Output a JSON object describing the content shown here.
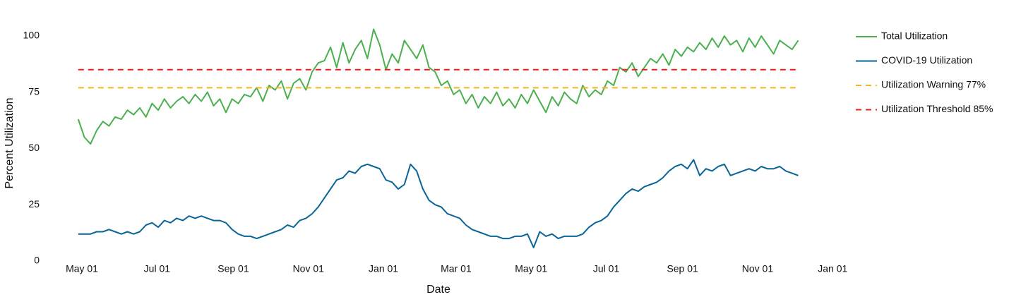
{
  "chart_data": {
    "type": "line",
    "x_label": "Date",
    "y_label": "Percent Utilization",
    "x": [
      -3,
      2,
      7,
      12,
      17,
      22,
      27,
      32,
      37,
      42,
      47,
      52,
      57,
      62,
      67,
      72,
      77,
      82,
      87,
      92,
      97,
      102,
      107,
      112,
      117,
      122,
      127,
      132,
      137,
      142,
      147,
      152,
      157,
      162,
      167,
      172,
      177,
      182,
      187,
      192,
      197,
      202,
      207,
      212,
      217,
      222,
      227,
      232,
      237,
      242,
      247,
      252,
      257,
      262,
      267,
      272,
      277,
      282,
      287,
      292,
      297,
      302,
      307,
      312,
      317,
      322,
      327,
      332,
      337,
      342,
      347,
      352,
      357,
      362,
      367,
      372,
      377,
      382,
      387,
      392,
      397,
      402,
      407,
      412,
      417,
      422,
      427,
      432,
      437,
      442,
      447,
      452,
      457,
      462,
      467,
      472,
      477,
      482,
      487,
      492,
      497,
      502,
      507,
      512,
      517,
      522,
      527,
      532,
      537,
      542,
      547,
      552,
      557,
      562,
      567,
      572,
      577,
      582
    ],
    "xlim": [
      -10,
      615
    ],
    "xticks": [
      {
        "value": 0,
        "label": "May 01"
      },
      {
        "value": 61,
        "label": "Jul 01"
      },
      {
        "value": 123,
        "label": "Sep 01"
      },
      {
        "value": 184,
        "label": "Nov 01"
      },
      {
        "value": 245,
        "label": "Jan 01"
      },
      {
        "value": 304,
        "label": "Mar 01"
      },
      {
        "value": 365,
        "label": "May 01"
      },
      {
        "value": 426,
        "label": "Jul 01"
      },
      {
        "value": 488,
        "label": "Sep 01"
      },
      {
        "value": 549,
        "label": "Nov 01"
      },
      {
        "value": 610,
        "label": "Jan 01"
      }
    ],
    "ylim": [
      0,
      105
    ],
    "yticks": [
      0,
      25,
      50,
      75,
      100
    ],
    "grid": false,
    "legend": "right",
    "series": [
      {
        "name": "Total Utilization",
        "color": "#4caf50",
        "values": [
          63,
          55,
          52,
          58,
          62,
          60,
          64,
          63,
          67,
          65,
          68,
          64,
          70,
          67,
          72,
          68,
          71,
          73,
          70,
          74,
          71,
          75,
          69,
          72,
          66,
          72,
          70,
          74,
          73,
          77,
          71,
          78,
          76,
          80,
          72,
          79,
          81,
          76,
          84,
          88,
          89,
          95,
          86,
          97,
          88,
          94,
          98,
          90,
          103,
          96,
          85,
          92,
          88,
          98,
          94,
          90,
          96,
          86,
          84,
          78,
          80,
          74,
          76,
          70,
          74,
          68,
          73,
          70,
          75,
          69,
          72,
          68,
          74,
          70,
          76,
          71,
          66,
          73,
          69,
          75,
          72,
          70,
          78,
          73,
          76,
          74,
          80,
          78,
          86,
          84,
          88,
          82,
          86,
          90,
          88,
          92,
          87,
          94,
          91,
          95,
          93,
          97,
          94,
          99,
          95,
          100,
          96,
          98,
          93,
          99,
          95,
          100,
          96,
          92,
          98,
          96,
          94,
          98
        ]
      },
      {
        "name": "COVID-19 Utilization",
        "color": "#0a6496",
        "values": [
          12,
          12,
          12,
          13,
          13,
          14,
          13,
          12,
          13,
          12,
          13,
          16,
          17,
          15,
          18,
          17,
          19,
          18,
          20,
          19,
          20,
          19,
          18,
          18,
          17,
          14,
          12,
          11,
          11,
          10,
          11,
          12,
          13,
          14,
          16,
          15,
          18,
          19,
          21,
          24,
          28,
          32,
          36,
          37,
          40,
          39,
          42,
          43,
          42,
          41,
          36,
          35,
          32,
          34,
          43,
          40,
          32,
          27,
          25,
          24,
          21,
          20,
          19,
          16,
          14,
          13,
          12,
          11,
          11,
          10,
          10,
          11,
          11,
          12,
          6,
          13,
          11,
          12,
          10,
          11,
          11,
          11,
          12,
          15,
          17,
          18,
          20,
          24,
          27,
          30,
          32,
          31,
          33,
          34,
          35,
          37,
          40,
          42,
          43,
          41,
          45,
          38,
          41,
          40,
          42,
          43,
          38,
          39,
          40,
          41,
          40,
          42,
          41,
          41,
          42,
          40,
          39,
          38
        ]
      },
      {
        "name": "Utilization Warning 77%",
        "color": "#f5b324",
        "value": 77,
        "dashed": true
      },
      {
        "name": "Utilization Threshold 85%",
        "color": "#e8201c",
        "value": 85,
        "dashed": true
      }
    ]
  }
}
